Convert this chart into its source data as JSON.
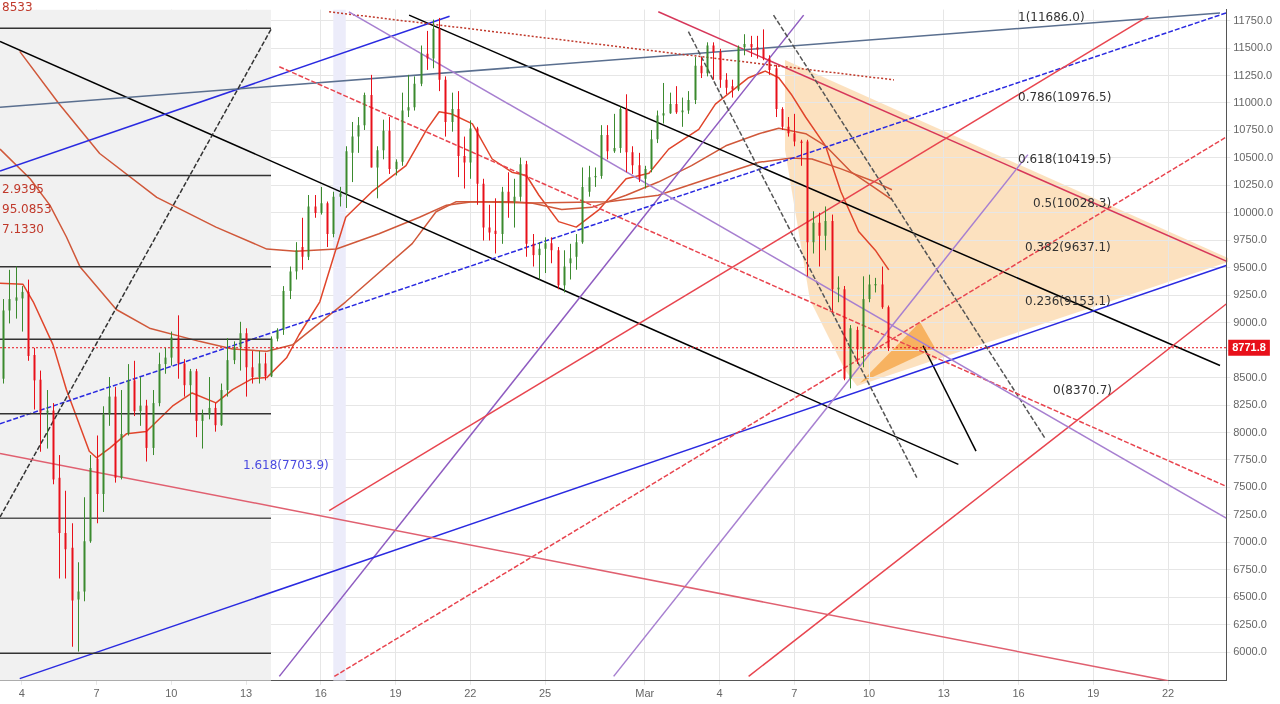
{
  "chart_data": {
    "type": "candlestick",
    "xlim": [
      "--02-03T03:00",
      "--03-24T08:00"
    ],
    "ylim": [
      5740,
      11850
    ],
    "xticks": [
      {
        "value": "--02-04",
        "label": "4"
      },
      {
        "value": "--02-07",
        "label": "7"
      },
      {
        "value": "--02-10",
        "label": "10"
      },
      {
        "value": "--02-13",
        "label": "13"
      },
      {
        "value": "--02-16",
        "label": "16"
      },
      {
        "value": "--02-19",
        "label": "19"
      },
      {
        "value": "--02-22",
        "label": "22"
      },
      {
        "value": "--02-25",
        "label": "25"
      },
      {
        "value": "--03-01",
        "label": "Mar"
      },
      {
        "value": "--03-04",
        "label": "4"
      },
      {
        "value": "--03-07",
        "label": "7"
      },
      {
        "value": "--03-10",
        "label": "10"
      },
      {
        "value": "--03-13",
        "label": "13"
      },
      {
        "value": "--03-16",
        "label": "16"
      },
      {
        "value": "--03-19",
        "label": "19"
      },
      {
        "value": "--03-22",
        "label": "22"
      }
    ],
    "yticks": [
      {
        "value": 6000,
        "label": "6000.0"
      },
      {
        "value": 6250,
        "label": "6250.0"
      },
      {
        "value": 6500,
        "label": "6500.0"
      },
      {
        "value": 6750,
        "label": "6750.0"
      },
      {
        "value": 7000,
        "label": "7000.0"
      },
      {
        "value": 7250,
        "label": "7250.0"
      },
      {
        "value": 7500,
        "label": "7500.0"
      },
      {
        "value": 7750,
        "label": "7750.0"
      },
      {
        "value": 8000,
        "label": "8000.0"
      },
      {
        "value": 8250,
        "label": "8250.0"
      },
      {
        "value": 8500,
        "label": "8500.0"
      },
      {
        "value": 8750,
        "label": null
      },
      {
        "value": 9000,
        "label": "9000.0"
      },
      {
        "value": 9250,
        "label": "9250.0"
      },
      {
        "value": 9500,
        "label": "9500.0"
      },
      {
        "value": 9750,
        "label": "9750.0"
      },
      {
        "value": 10000,
        "label": "10000.0"
      },
      {
        "value": 10250,
        "label": "10250.0"
      },
      {
        "value": 10500,
        "label": "10500.0"
      },
      {
        "value": 10750,
        "label": "10750.0"
      },
      {
        "value": 11000,
        "label": "11000.0"
      },
      {
        "value": 11250,
        "label": "11250.0"
      },
      {
        "value": 11500,
        "label": "11500.0"
      },
      {
        "value": 11750,
        "label": "11750.0"
      }
    ],
    "grid": true,
    "legend": false,
    "marker": "none",
    "bands": [
      {
        "axis": "x",
        "from": "--02-03T03:00",
        "to": "--02-14T00:00",
        "color": "#f1f1f1"
      },
      {
        "axis": "x",
        "from": "--02-16T12:00",
        "to": "--02-17T00:00",
        "color": "#ececfa"
      }
    ],
    "ref_lines": [
      {
        "axis": "y",
        "value": 8771.8,
        "label": "8771.8",
        "color": "#e8101a",
        "line_style": "dotted"
      }
    ],
    "annotations": [
      "1(11686.0)",
      "0.786(10976.5)",
      "0.618(10419.5)",
      "0.5(10028.3)",
      "0.382(9637.1)",
      "0.236(9153.1)",
      "0(8370.7)",
      "1.618(7703.9)",
      "8533",
      "2.9395",
      "95.0853",
      "7.1330"
    ],
    "series": [
      {
        "type": "line",
        "color": "#333333",
        "x": [
          "--02-03T03:00",
          "--02-14T00:00"
        ],
        "values": [
          11680,
          11680
        ]
      },
      {
        "type": "line",
        "color": "#333333",
        "x": [
          "--02-03T03:00",
          "--02-14T00:00"
        ],
        "values": [
          10340,
          10340
        ]
      },
      {
        "type": "line",
        "color": "#333333",
        "x": [
          "--02-03T03:00",
          "--02-14T00:00"
        ],
        "values": [
          9510,
          9510
        ]
      },
      {
        "type": "line",
        "color": "#333333",
        "x": [
          "--02-03T03:00",
          "--02-14T00:00"
        ],
        "values": [
          8850,
          8850
        ]
      },
      {
        "type": "line",
        "color": "#333333",
        "x": [
          "--02-03T03:00",
          "--02-14T00:00"
        ],
        "values": [
          8170,
          8170
        ]
      },
      {
        "type": "line",
        "color": "#555555",
        "x": [
          "--02-03T03:00",
          "--02-14T00:00"
        ],
        "values": [
          7220,
          7220
        ]
      },
      {
        "type": "line",
        "color": "#333333",
        "x": [
          "--02-03T03:00",
          "--02-14T00:00"
        ],
        "values": [
          5990,
          5990
        ]
      },
      {
        "type": "line",
        "color": "#e06070",
        "x": [
          "--02-03T03:00",
          "--03-22T00:00"
        ],
        "values": [
          7810,
          5740
        ]
      },
      {
        "type": "line",
        "color": "#a77fd0",
        "x": [
          "--02-17T03:00",
          "--03-24T08:00"
        ],
        "values": [
          11830,
          7220
        ]
      },
      {
        "type": "line",
        "color": "#a77fd0",
        "x": [
          "--02-27T18:00",
          "--03-16T09:00"
        ],
        "values": [
          5780,
          10530
        ]
      },
      {
        "type": "line",
        "color": "#e8454f",
        "x": [
          "--02-16T08:00",
          "--03-21T05:00"
        ],
        "values": [
          7290,
          11790
        ]
      },
      {
        "type": "line",
        "color": "#e8454f",
        "x": [
          "--03-05T04:00",
          "--03-24T08:00"
        ],
        "values": [
          5780,
          9170
        ]
      },
      {
        "type": "line",
        "color": "#e8454f",
        "line_style": "dashed",
        "x": [
          "--02-14T08:00",
          "--03-24T08:00"
        ],
        "values": [
          11330,
          7510
        ]
      },
      {
        "type": "line",
        "color": "#e8454f",
        "line_style": "dashed",
        "x": [
          "--02-16T13:00",
          "--03-24T08:00"
        ],
        "values": [
          5780,
          10690
        ]
      },
      {
        "type": "line",
        "color": "#333333",
        "line_style": "dashed",
        "x": [
          "--02-03T03:00",
          "--02-14T00:00"
        ],
        "values": [
          7230,
          11670
        ]
      },
      {
        "type": "line",
        "color": "#555555",
        "line_style": "dashed",
        "x": [
          "--03-02T18:00",
          "--03-11T22:00"
        ],
        "values": [
          11650,
          7590
        ]
      },
      {
        "type": "line",
        "color": "#555555",
        "line_style": "dashed",
        "x": [
          "--03-06T04:00",
          "--03-17T02:00"
        ],
        "values": [
          11800,
          7940
        ]
      },
      {
        "type": "line",
        "color": "#c0392b",
        "line_style": "dotted",
        "x": [
          "--02-16T08:00",
          "--03-11T00:00"
        ],
        "values": [
          11830,
          11210
        ]
      },
      {
        "type": "line",
        "color": "#5a6f8f",
        "x": [
          "--02-03T03:00",
          "--03-24T02:00"
        ],
        "values": [
          10960,
          11820
        ]
      },
      {
        "type": "line",
        "color": "#2a2ae0",
        "line_style": "dashed",
        "x": [
          "--02-03T03:00",
          "--03-24T08:00"
        ],
        "values": [
          8080,
          11820
        ]
      },
      {
        "type": "line",
        "color": "#2a2ae0",
        "x": [
          "--02-03T03:00",
          "--02-21T04:00"
        ],
        "values": [
          10380,
          11790
        ]
      },
      {
        "type": "line",
        "color": "#2a2ae0",
        "x": [
          "--02-03T22:00",
          "--03-24T08:00"
        ],
        "values": [
          5760,
          9520
        ]
      },
      {
        "type": "line",
        "color": "#d6375a",
        "x": [
          "--03-01T13:00",
          "--03-24T08:00"
        ],
        "values": [
          11830,
          9560
        ]
      },
      {
        "type": "line",
        "color": "#8e5bc0",
        "x": [
          "--02-14T08:00",
          "--03-07T09:00"
        ],
        "values": [
          5780,
          11800
        ]
      },
      {
        "type": "line",
        "color": "#000000",
        "x": [
          "--02-03T03:00",
          "--03-13T14:00"
        ],
        "values": [
          11560,
          7710
        ]
      },
      {
        "type": "line",
        "color": "#000000",
        "x": [
          "--02-19T13:00",
          "--03-24T02:00"
        ],
        "values": [
          11800,
          8610
        ]
      },
      {
        "type": "line",
        "color": "#000000",
        "x": [
          "--03-12T04:00",
          "--03-14T07:00"
        ],
        "values": [
          8790,
          7830
        ]
      },
      {
        "type": "line",
        "color": "#d0583a",
        "x": [
          "--02-03T22:00",
          "--02-05T12:00",
          "--02-07T03:00",
          "--02-09T10:00",
          "--02-11T19:00",
          "--02-13T20:00",
          "--02-15T00:00",
          "--02-16T15:00",
          "--02-18T08:00",
          "--02-19T23:00",
          "--02-21T01:00",
          "--02-22T02:00",
          "--02-24T11:00",
          "--02-27T13:00",
          "--03-01T13:00",
          "--03-03T13:00",
          "--03-05T14:00",
          "--03-06T21:00",
          "--03-07T17:00",
          "--03-08T21:00",
          "--03-10T06:00",
          "--03-10T22:00"
        ],
        "values": [
          11470,
          10990,
          10540,
          10140,
          9870,
          9670,
          9650,
          9670,
          9810,
          9960,
          10070,
          10100,
          10090,
          10100,
          10160,
          10310,
          10460,
          10500,
          10490,
          10400,
          10280,
          10210
        ]
      },
      {
        "type": "line",
        "color": "#d0583a",
        "x": [
          "--02-03T03:00",
          "--02-04T08:00",
          "--02-05T03:00",
          "--02-05T19:00",
          "--02-06T08:00",
          "--02-07T19:00",
          "--02-09T03:00",
          "--02-11T03:00",
          "--02-12T11:00",
          "--02-13T20:00",
          "--02-14T21:00",
          "--02-17T00:00",
          "--02-19T16:00",
          "--02-20T15:00",
          "--02-21T10:00",
          "--02-22T08:00",
          "--02-23T16:00",
          "--02-24T11:00",
          "--02-25T16:00",
          "--02-26T21:00",
          "--02-28T06:00",
          "--03-01T13:00",
          "--03-02T21:00",
          "--03-04T06:00",
          "--03-05T14:00",
          "--03-06T09:00",
          "--03-07T11:00",
          "--03-08T06:00",
          "--03-09T07:00",
          "--03-10T02:00",
          "--03-10T22:00"
        ],
        "values": [
          10580,
          10310,
          10070,
          9780,
          9510,
          9120,
          8950,
          8830,
          8760,
          8740,
          8800,
          9190,
          9720,
          10010,
          10100,
          10100,
          10100,
          10090,
          10030,
          10050,
          10160,
          10280,
          10430,
          10610,
          10720,
          10770,
          10720,
          10610,
          10370,
          10250,
          10120
        ]
      },
      {
        "type": "line",
        "color": "#e0452b",
        "x": [
          "--02-03T03:00",
          "--02-04T01:00",
          "--02-04T11:00",
          "--02-05T06:00",
          "--02-05T19:00",
          "--02-06T17:00",
          "--02-07T00:00",
          "--02-07T13:00",
          "--02-08T05:00",
          "--02-09T00:00",
          "--02-10T01:00",
          "--02-10T20:00",
          "--02-11T19:00",
          "--02-12T11:00",
          "--02-13T06:00",
          "--02-13T20:00",
          "--02-14T15:00",
          "--02-15T03:00",
          "--02-15T23:00",
          "--02-17T00:00",
          "--02-18T01:00",
          "--02-19T10:00",
          "--02-20T06:00",
          "--02-20T18:00",
          "--02-21T06:00",
          "--02-22T02:00",
          "--02-22T21:00",
          "--02-23T16:00",
          "--02-24T06:00",
          "--02-24T18:00",
          "--02-25T13:00",
          "--02-26T06:00",
          "--02-27T04:00",
          "--02-28T06:00",
          "--03-01T04:00",
          "--03-01T23:00",
          "--03-03T04:00",
          "--03-03T20:00",
          "--03-04T12:00",
          "--03-05T04:00",
          "--03-05T20:00",
          "--03-06T09:00",
          "--03-06T21:00",
          "--03-07T11:00",
          "--03-08T06:00",
          "--03-08T21:00",
          "--03-09T14:00",
          "--03-10T06:00",
          "--03-10T19:00"
        ],
        "values": [
          9360,
          9350,
          9190,
          8800,
          8390,
          7830,
          7770,
          7860,
          7990,
          8010,
          8240,
          8360,
          8270,
          8390,
          8490,
          8500,
          8680,
          8890,
          9190,
          9960,
          10190,
          10430,
          10760,
          10920,
          10900,
          10810,
          10490,
          10370,
          10340,
          10160,
          9920,
          9870,
          10030,
          10310,
          10360,
          10580,
          10760,
          10990,
          11110,
          11230,
          11290,
          11230,
          11080,
          10870,
          10610,
          10190,
          9830,
          9660,
          9480
        ]
      },
      {
        "color": "#3b8a2e",
        "x": [
          "--02-03T06:00",
          "--02-03T12:00",
          "--02-03T18:00",
          "--02-04T00:00",
          "--02-05T00:00",
          "--02-06T06:00",
          "--02-06T12:00",
          "--02-06T18:00",
          "--02-07T06:00",
          "--02-07T12:00",
          "--02-08T00:00",
          "--02-08T06:00",
          "--02-08T18:00",
          "--02-09T06:00",
          "--02-09T12:00",
          "--02-09T18:00",
          "--02-10T00:00",
          "--02-10T18:00",
          "--02-11T06:00",
          "--02-11T12:00",
          "--02-12T00:00",
          "--02-12T06:00",
          "--02-12T12:00",
          "--02-12T18:00",
          "--02-13T12:00",
          "--02-14T00:00",
          "--02-14T06:00",
          "--02-14T12:00",
          "--02-14T18:00",
          "--02-15T00:00",
          "--02-15T12:00",
          "--02-16T00:00",
          "--02-16T12:00",
          "--02-16T18:00",
          "--02-17T00:00",
          "--02-17T06:00",
          "--02-17T12:00",
          "--02-17T18:00",
          "--02-18T06:00",
          "--02-18T12:00",
          "--02-19T00:00",
          "--02-19T06:00",
          "--02-19T12:00",
          "--02-19T18:00",
          "--02-20T00:00",
          "--02-20T12:00",
          "--02-21T06:00",
          "--02-22T00:00",
          "--02-23T06:00",
          "--02-23T18:00",
          "--02-24T00:00",
          "--02-24T18:00",
          "--02-25T00:00",
          "--02-25T18:00",
          "--02-26T00:00",
          "--02-26T06:00",
          "--02-26T12:00",
          "--02-26T18:00",
          "--02-27T00:00",
          "--02-27T06:00",
          "--02-27T18:00",
          "--02-28T00:00",
          "--03-01T00:00",
          "--03-01T06:00",
          "--03-01T12:00",
          "--03-01T18:00",
          "--03-02T00:00",
          "--03-02T12:00",
          "--03-02T18:00",
          "--03-03T00:00",
          "--03-03T12:00",
          "--03-04T18:00",
          "--03-05T00:00",
          "--03-07T18:00",
          "--03-08T06:00",
          "--03-08T18:00",
          "--03-09T06:00",
          "--03-09T18:00",
          "--03-10T00:00",
          "--03-10T06:00"
        ],
        "ohlc": [
          [
            8490,
            9215,
            8446,
            9111
          ],
          [
            9111,
            9481,
            8993,
            9215
          ],
          [
            9200,
            9511,
            9037,
            9230
          ],
          [
            9221,
            9333,
            8919,
            9280
          ],
          [
            8180,
            8387,
            7854,
            8200
          ],
          [
            6479,
            6819,
            6006,
            6553
          ],
          [
            6553,
            7411,
            6464,
            7011
          ],
          [
            7011,
            7795,
            6996,
            7677
          ],
          [
            7440,
            8239,
            7277,
            8165
          ],
          [
            8165,
            8505,
            8061,
            8327
          ],
          [
            7588,
            8387,
            7573,
            7987
          ],
          [
            7987,
            8623,
            7973,
            8475
          ],
          [
            8194,
            8505,
            8061,
            8245
          ],
          [
            7860,
            8387,
            7795,
            8268
          ],
          [
            8268,
            8727,
            8239,
            8623
          ],
          [
            8623,
            8771,
            8535,
            8682
          ],
          [
            8682,
            8919,
            8609,
            8866
          ],
          [
            8431,
            8579,
            8180,
            8558
          ],
          [
            8106,
            8209,
            7854,
            8165
          ],
          [
            8165,
            8505,
            8120,
            8224
          ],
          [
            8067,
            8446,
            8061,
            8387
          ],
          [
            8387,
            8860,
            8327,
            8659
          ],
          [
            8659,
            8830,
            8623,
            8777
          ],
          [
            8777,
            9008,
            8564,
            8904
          ],
          [
            8505,
            8742,
            8446,
            8629
          ],
          [
            8511,
            8875,
            8505,
            8854
          ],
          [
            8854,
            8949,
            8830,
            8934
          ],
          [
            8934,
            9333,
            8889,
            9289
          ],
          [
            9289,
            9511,
            9215,
            9466
          ],
          [
            9467,
            9733,
            9393,
            9659
          ],
          [
            9600,
            10162,
            9570,
            10058
          ],
          [
            9999,
            10236,
            9984,
            10088
          ],
          [
            9807,
            10192,
            9777,
            10147
          ],
          [
            10147,
            10236,
            10058,
            10177
          ],
          [
            10177,
            10606,
            10044,
            10561
          ],
          [
            10547,
            10827,
            10280,
            10695
          ],
          [
            10695,
            10872,
            10546,
            10798
          ],
          [
            10798,
            11094,
            10754,
            11073
          ],
          [
            10413,
            10606,
            10132,
            10570
          ],
          [
            10570,
            10848,
            10487,
            10748
          ],
          [
            10399,
            10487,
            10340,
            10464
          ],
          [
            10464,
            11094,
            10428,
            10931
          ],
          [
            10931,
            11256,
            10872,
            10961
          ],
          [
            10961,
            11242,
            10931,
            11174
          ],
          [
            11174,
            11523,
            11153,
            11449
          ],
          [
            11404,
            11759,
            11316,
            11676
          ],
          [
            10827,
            11094,
            10739,
            10946
          ],
          [
            10458,
            10842,
            10310,
            10768
          ],
          [
            9807,
            10236,
            9718,
            10192
          ],
          [
            10103,
            10310,
            9866,
            10147
          ],
          [
            10147,
            10502,
            10103,
            10443
          ],
          [
            9615,
            9733,
            9393,
            9674
          ],
          [
            9674,
            9777,
            9452,
            9724
          ],
          [
            9340,
            9659,
            9275,
            9511
          ],
          [
            9541,
            9718,
            9393,
            9585
          ],
          [
            9600,
            9807,
            9482,
            9733
          ],
          [
            9733,
            10413,
            9718,
            10236
          ],
          [
            10192,
            10428,
            10147,
            10325
          ],
          [
            10325,
            10413,
            10236,
            10335
          ],
          [
            10335,
            10798,
            10310,
            10709
          ],
          [
            10561,
            10901,
            10546,
            10591
          ],
          [
            10591,
            10966,
            10546,
            10946
          ],
          [
            10310,
            10428,
            10221,
            10399
          ],
          [
            10399,
            10754,
            10369,
            10670
          ],
          [
            10670,
            10931,
            10635,
            10887
          ],
          [
            10887,
            11182,
            10813,
            10907
          ],
          [
            10907,
            11094,
            10901,
            10990
          ],
          [
            10916,
            11049,
            10783,
            10931
          ],
          [
            10931,
            11108,
            10901,
            11026
          ],
          [
            11026,
            11419,
            10990,
            11339
          ],
          [
            11271,
            11552,
            11242,
            11523
          ],
          [
            11123,
            11523,
            11108,
            11508
          ],
          [
            11508,
            11626,
            11434,
            11537
          ],
          [
            9733,
            10014,
            9630,
            9910
          ],
          [
            9792,
            10058,
            9659,
            9925
          ],
          [
            9304,
            9422,
            9186,
            9319
          ],
          [
            8490,
            8978,
            8402,
            8949
          ],
          [
            8757,
            9422,
            8594,
            9215
          ],
          [
            9215,
            9437,
            9186,
            9348
          ],
          [
            9340,
            9408,
            9275,
            9352
          ]
        ]
      },
      {
        "color": "#e8101a",
        "x": [
          "--02-04T06:00",
          "--02-04T12:00",
          "--02-04T18:00",
          "--02-05T06:00",
          "--02-05T12:00",
          "--02-05T18:00",
          "--02-06T00:00",
          "--02-07T00:00",
          "--02-07T18:00",
          "--02-08T12:00",
          "--02-09T00:00",
          "--02-10T06:00",
          "--02-10T12:00",
          "--02-11T00:00",
          "--02-11T18:00",
          "--02-13T00:00",
          "--02-13T06:00",
          "--02-13T18:00",
          "--02-15T06:00",
          "--02-15T18:00",
          "--02-16T06:00",
          "--02-18T00:00",
          "--02-18T18:00",
          "--02-20T06:00",
          "--02-20T18:00",
          "--02-21T00:00",
          "--02-21T12:00",
          "--02-21T18:00",
          "--02-22T06:00",
          "--02-22T12:00",
          "--02-22T18:00",
          "--02-23T00:00",
          "--02-23T12:00",
          "--02-24T06:00",
          "--02-24T12:00",
          "--02-25T06:00",
          "--02-25T12:00",
          "--02-27T12:00",
          "--02-28T06:00",
          "--02-28T12:00",
          "--02-28T18:00",
          "--03-02T06:00",
          "--03-03T06:00",
          "--03-03T18:00",
          "--03-04T00:00",
          "--03-04T06:00",
          "--03-04T12:00",
          "--03-05T06:00",
          "--03-05T12:00",
          "--03-05T18:00",
          "--03-06T00:00",
          "--03-06T06:00",
          "--03-06T12:00",
          "--03-06T18:00",
          "--03-07T00:00",
          "--03-07T06:00",
          "--03-07T12:00",
          "--03-08T00:00",
          "--03-08T12:00",
          "--03-09T00:00",
          "--03-09T12:00",
          "--03-10T12:00",
          "--03-10T18:00"
        ],
        "ohlc": [
          [
            9280,
            9392,
            8653,
            8697
          ],
          [
            8706,
            8771,
            8209,
            8475
          ],
          [
            8481,
            8564,
            7825,
            8180
          ],
          [
            8200,
            8268,
            7529,
            7573
          ],
          [
            7588,
            7795,
            6671,
            7085
          ],
          [
            7085,
            7470,
            6671,
            6937
          ],
          [
            6952,
            7174,
            6050,
            6470
          ],
          [
            7760,
            7973,
            7174,
            7440
          ],
          [
            8327,
            8416,
            7544,
            7588
          ],
          [
            8475,
            8653,
            8150,
            8194
          ],
          [
            8245,
            8298,
            7736,
            7860
          ],
          [
            8866,
            9067,
            8490,
            8629
          ],
          [
            8629,
            8668,
            8327,
            8431
          ],
          [
            8558,
            8579,
            7958,
            8106
          ],
          [
            8224,
            8268,
            8008,
            8067
          ],
          [
            8904,
            8949,
            8327,
            8594
          ],
          [
            8594,
            8742,
            8446,
            8505
          ],
          [
            8629,
            8727,
            8475,
            8511
          ],
          [
            9689,
            9955,
            9482,
            9600
          ],
          [
            10058,
            10162,
            9955,
            9999
          ],
          [
            10088,
            10103,
            9689,
            9807
          ],
          [
            11073,
            11256,
            10413,
            10413
          ],
          [
            10748,
            10872,
            10354,
            10399
          ],
          [
            11449,
            11656,
            11301,
            11404
          ],
          [
            11676,
            11774,
            11108,
            11212
          ],
          [
            11212,
            11242,
            10694,
            10827
          ],
          [
            10946,
            11108,
            10325,
            10517
          ],
          [
            10517,
            10694,
            10221,
            10458
          ],
          [
            10768,
            10783,
            10073,
            10265
          ],
          [
            10265,
            10310,
            9748,
            9866
          ],
          [
            9866,
            10073,
            9748,
            9822
          ],
          [
            9836,
            10132,
            9630,
            9807
          ],
          [
            10192,
            10369,
            9955,
            10103
          ],
          [
            10443,
            10473,
            9600,
            9718
          ],
          [
            9718,
            9807,
            9511,
            9615
          ],
          [
            9724,
            9777,
            9541,
            9659
          ],
          [
            9659,
            9689,
            9304,
            9340
          ],
          [
            10709,
            10798,
            10487,
            10561
          ],
          [
            10946,
            11079,
            10369,
            10552
          ],
          [
            10552,
            10606,
            10354,
            10434
          ],
          [
            10434,
            10546,
            10280,
            10310
          ],
          [
            10990,
            11153,
            10901,
            10916
          ],
          [
            11339,
            11419,
            11227,
            11271
          ],
          [
            11523,
            11552,
            11212,
            11463
          ],
          [
            11463,
            11493,
            11138,
            11212
          ],
          [
            11212,
            11271,
            11079,
            11138
          ],
          [
            11153,
            11212,
            11049,
            11123
          ],
          [
            11537,
            11611,
            11419,
            11508
          ],
          [
            11508,
            11611,
            11404,
            11487
          ],
          [
            11493,
            11670,
            11389,
            11404
          ],
          [
            11404,
            11434,
            11256,
            11301
          ],
          [
            11316,
            11345,
            10872,
            10946
          ],
          [
            10946,
            10961,
            10754,
            10783
          ],
          [
            10783,
            10872,
            10694,
            10724
          ],
          [
            10724,
            10901,
            10606,
            10650
          ],
          [
            10650,
            10665,
            10428,
            10635
          ],
          [
            10650,
            10665,
            9422,
            9733
          ],
          [
            9910,
            10000,
            9511,
            9792
          ],
          [
            9925,
            9984,
            9097,
            9304
          ],
          [
            9304,
            9334,
            8476,
            8490
          ],
          [
            8934,
            8964,
            8624,
            8757
          ],
          [
            9348,
            9511,
            9126,
            9141
          ],
          [
            9141,
            9156,
            8742,
            8771.8
          ]
        ]
      }
    ]
  }
}
